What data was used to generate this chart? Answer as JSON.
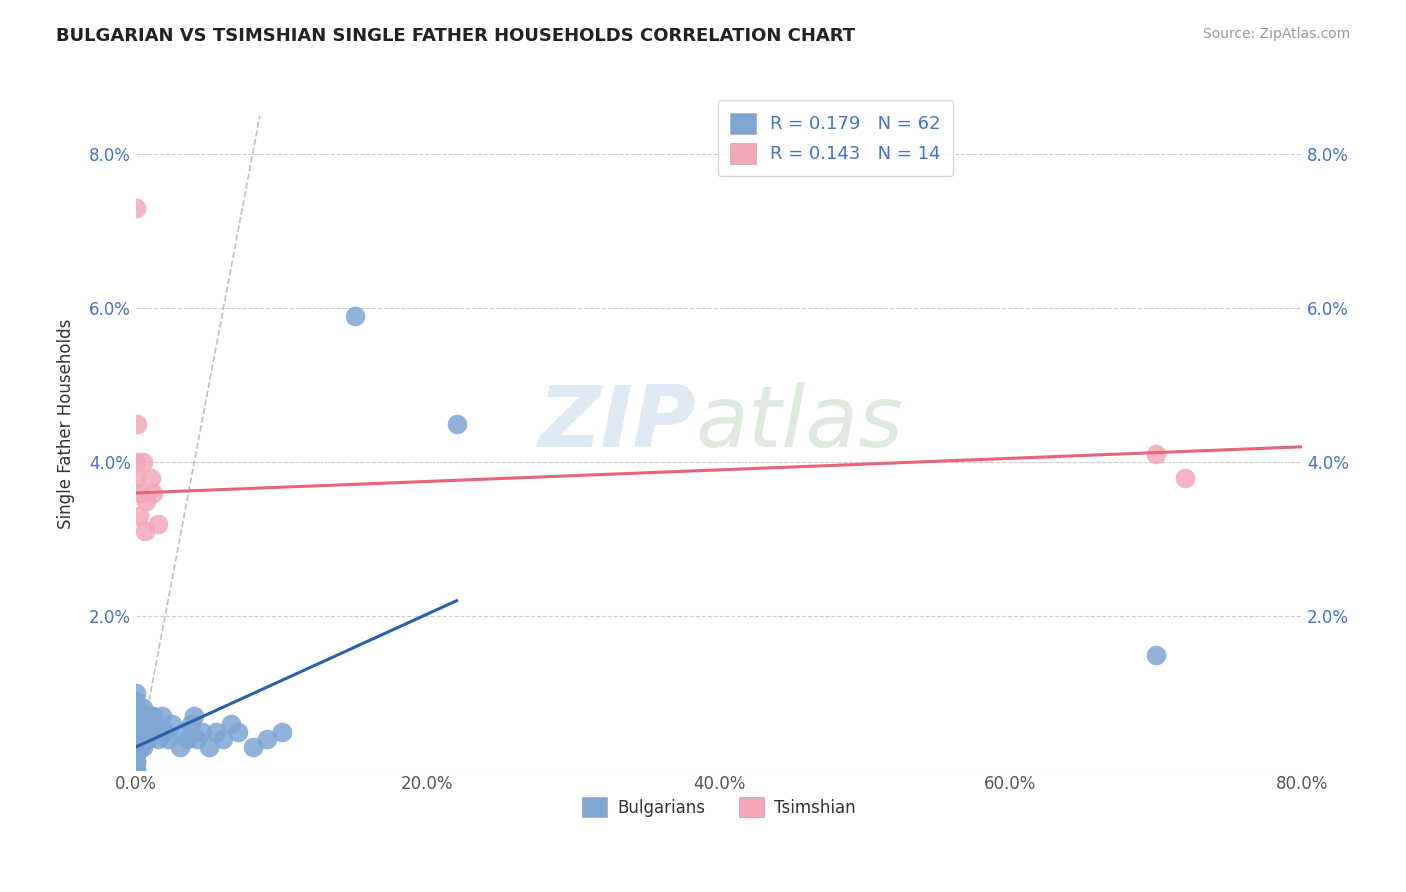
{
  "title": "BULGARIAN VS TSIMSHIAN SINGLE FATHER HOUSEHOLDS CORRELATION CHART",
  "source": "Source: ZipAtlas.com",
  "ylabel": "Single Father Households",
  "xlim": [
    0.0,
    0.8
  ],
  "ylim": [
    0.0,
    0.09
  ],
  "xticks": [
    0.0,
    0.2,
    0.4,
    0.6,
    0.8
  ],
  "xtick_labels": [
    "0.0%",
    "20.0%",
    "40.0%",
    "60.0%",
    "80.0%"
  ],
  "yticks": [
    0.0,
    0.02,
    0.04,
    0.06,
    0.08
  ],
  "ytick_labels": [
    "",
    "2.0%",
    "4.0%",
    "6.0%",
    "8.0%"
  ],
  "legend_labels": [
    "Bulgarians",
    "Tsimshian"
  ],
  "blue_color": "#7EA6D4",
  "pink_color": "#F4A7B9",
  "blue_line_color": "#2B5FA8",
  "pink_line_color": "#E8627A",
  "diag_color": "#C0C0C0",
  "bulgarians_x": [
    0.0,
    0.0,
    0.0,
    0.0,
    0.0,
    0.0,
    0.0,
    0.0,
    0.0,
    0.0,
    0.001,
    0.001,
    0.002,
    0.003,
    0.003,
    0.004,
    0.005,
    0.005,
    0.006,
    0.007,
    0.008,
    0.009,
    0.01,
    0.012,
    0.013,
    0.015,
    0.018,
    0.02,
    0.022,
    0.025,
    0.03,
    0.032,
    0.035,
    0.038,
    0.04,
    0.042,
    0.045,
    0.05,
    0.055,
    0.06,
    0.065,
    0.07,
    0.08,
    0.09,
    0.1,
    0.0,
    0.0,
    0.0,
    0.0,
    0.0,
    0.001,
    0.002,
    0.003,
    0.004,
    0.005,
    0.006,
    0.007,
    0.008,
    0.01,
    0.15,
    0.22,
    0.7
  ],
  "bulgarians_y": [
    0.0,
    0.0,
    0.001,
    0.001,
    0.002,
    0.002,
    0.003,
    0.003,
    0.004,
    0.005,
    0.005,
    0.006,
    0.004,
    0.003,
    0.005,
    0.007,
    0.007,
    0.008,
    0.006,
    0.005,
    0.004,
    0.006,
    0.005,
    0.007,
    0.006,
    0.004,
    0.007,
    0.005,
    0.004,
    0.006,
    0.003,
    0.005,
    0.004,
    0.006,
    0.007,
    0.004,
    0.005,
    0.003,
    0.005,
    0.004,
    0.006,
    0.005,
    0.003,
    0.004,
    0.005,
    0.006,
    0.007,
    0.008,
    0.009,
    0.01,
    0.003,
    0.004,
    0.005,
    0.006,
    0.003,
    0.004,
    0.005,
    0.006,
    0.007,
    0.059,
    0.045,
    0.015
  ],
  "tsimshian_x": [
    0.0,
    0.0,
    0.0,
    0.001,
    0.002,
    0.003,
    0.005,
    0.006,
    0.007,
    0.01,
    0.012,
    0.015,
    0.7,
    0.72
  ],
  "tsimshian_y": [
    0.073,
    0.04,
    0.038,
    0.045,
    0.033,
    0.036,
    0.04,
    0.031,
    0.035,
    0.038,
    0.036,
    0.032,
    0.041,
    0.038
  ],
  "bulgarians_line_x": [
    0.0,
    0.22
  ],
  "bulgarians_line_y": [
    0.003,
    0.022
  ],
  "tsimshian_line_x": [
    0.0,
    0.8
  ],
  "tsimshian_line_y": [
    0.036,
    0.042
  ]
}
